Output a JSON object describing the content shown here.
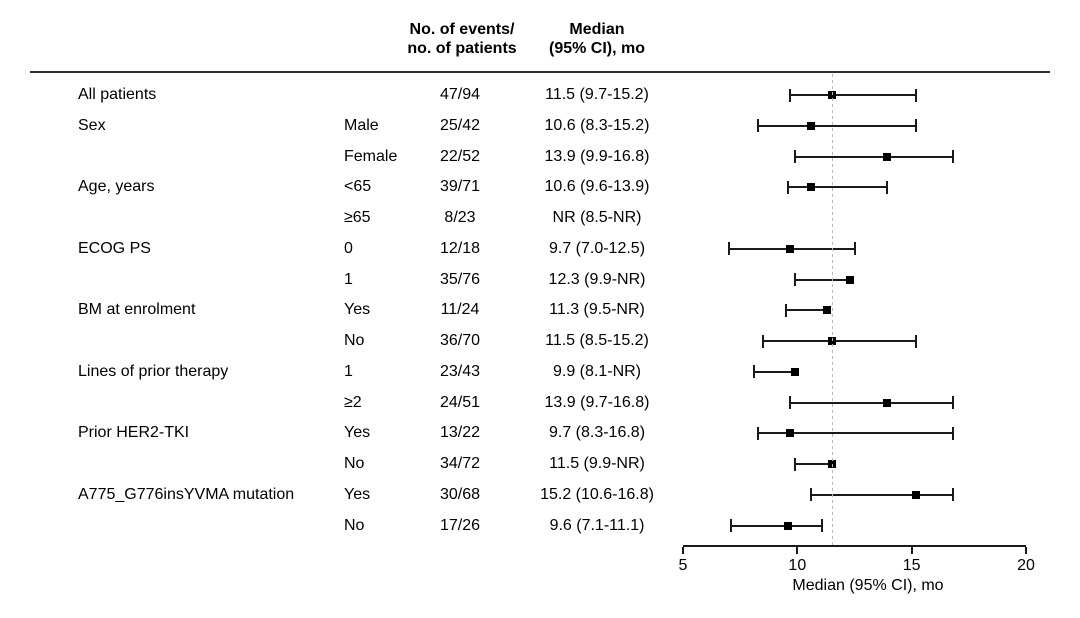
{
  "table": {
    "headers": {
      "events_line1": "No. of events/",
      "events_line2": "no. of patients",
      "median_line1": "Median",
      "median_line2": "(95% CI), mo"
    }
  },
  "chart_data": {
    "type": "forest",
    "title": "",
    "xlabel": "Median (95% CI), mo",
    "xlim": [
      5,
      20
    ],
    "xticks": [
      5,
      10,
      15,
      20
    ],
    "grid": false,
    "reference_line": 11.5,
    "marker_shape": "square",
    "nr_text": "NR",
    "rows": [
      {
        "group": "All patients",
        "subgroup": "",
        "events": "47/94",
        "median_ci": "11.5 (9.7-15.2)",
        "median": 11.5,
        "lower": 9.7,
        "upper": 15.2
      },
      {
        "group": "Sex",
        "subgroup": "Male",
        "events": "25/42",
        "median_ci": "10.6 (8.3-15.2)",
        "median": 10.6,
        "lower": 8.3,
        "upper": 15.2
      },
      {
        "group": "",
        "subgroup": "Female",
        "events": "22/52",
        "median_ci": "13.9 (9.9-16.8)",
        "median": 13.9,
        "lower": 9.9,
        "upper": 16.8
      },
      {
        "group": "Age, years",
        "subgroup": "<65",
        "events": "39/71",
        "median_ci": "10.6 (9.6-13.9)",
        "median": 10.6,
        "lower": 9.6,
        "upper": 13.9
      },
      {
        "group": "",
        "subgroup": "≥65",
        "events": "8/23",
        "median_ci": "NR (8.5-NR)",
        "median": null,
        "lower": null,
        "upper": null
      },
      {
        "group": "ECOG PS",
        "subgroup": "0",
        "events": "12/18",
        "median_ci": "9.7 (7.0-12.5)",
        "median": 9.7,
        "lower": 7.0,
        "upper": 12.5
      },
      {
        "group": "",
        "subgroup": "1",
        "events": "35/76",
        "median_ci": "12.3 (9.9-NR)",
        "median": 12.3,
        "lower": 9.9,
        "upper": null
      },
      {
        "group": "BM at enrolment",
        "subgroup": "Yes",
        "events": "11/24",
        "median_ci": "11.3 (9.5-NR)",
        "median": 11.3,
        "lower": 9.5,
        "upper": null
      },
      {
        "group": "",
        "subgroup": "No",
        "events": "36/70",
        "median_ci": "11.5 (8.5-15.2)",
        "median": 11.5,
        "lower": 8.5,
        "upper": 15.2
      },
      {
        "group": "Lines of prior therapy",
        "subgroup": "1",
        "events": "23/43",
        "median_ci": "9.9 (8.1-NR)",
        "median": 9.9,
        "lower": 8.1,
        "upper": null
      },
      {
        "group": "",
        "subgroup": "≥2",
        "events": "24/51",
        "median_ci": "13.9 (9.7-16.8)",
        "median": 13.9,
        "lower": 9.7,
        "upper": 16.8
      },
      {
        "group": "Prior HER2-TKI",
        "subgroup": "Yes",
        "events": "13/22",
        "median_ci": "9.7 (8.3-16.8)",
        "median": 9.7,
        "lower": 8.3,
        "upper": 16.8
      },
      {
        "group": "",
        "subgroup": "No",
        "events": "34/72",
        "median_ci": "11.5 (9.9-NR)",
        "median": 11.5,
        "lower": 9.9,
        "upper": null
      },
      {
        "group": "A775_G776insYVMA mutation",
        "subgroup": "Yes",
        "events": "30/68",
        "median_ci": "15.2 (10.6-16.8)",
        "median": 15.2,
        "lower": 10.6,
        "upper": 16.8
      },
      {
        "group": "",
        "subgroup": "No",
        "events": "17/26",
        "median_ci": "9.6 (7.1-11.1)",
        "median": 9.6,
        "lower": 7.1,
        "upper": 11.1
      }
    ]
  },
  "colors": {
    "text": "#000000",
    "line": "#1a1a1a",
    "marker": "#000000",
    "reference_dash": "#b8b8b8",
    "header_rule": "#2e2e2e",
    "background": "#ffffff"
  }
}
